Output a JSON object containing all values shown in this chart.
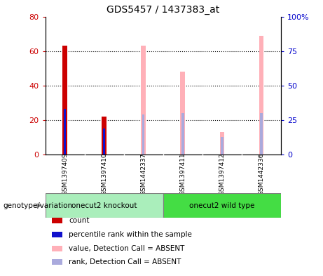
{
  "title": "GDS5457 / 1437383_at",
  "samples": [
    "GSM1397409",
    "GSM1397410",
    "GSM1442337",
    "GSM1397411",
    "GSM1397412",
    "GSM1442336"
  ],
  "group_labels": [
    "onecut2 knockout",
    "onecut2 wild type"
  ],
  "count_values": [
    63,
    22,
    null,
    null,
    null,
    null
  ],
  "rank_values": [
    33,
    19,
    null,
    null,
    null,
    null
  ],
  "value_absent": [
    null,
    null,
    63,
    48,
    13,
    69
  ],
  "rank_absent": [
    null,
    null,
    29,
    30,
    13,
    30
  ],
  "left_ylim": [
    0,
    80
  ],
  "right_ylim": [
    0,
    100
  ],
  "left_yticks": [
    0,
    20,
    40,
    60,
    80
  ],
  "right_yticks": [
    0,
    25,
    50,
    75,
    100
  ],
  "right_yticklabels": [
    "0",
    "25",
    "50",
    "75",
    "100%"
  ],
  "count_color": "#CC0000",
  "rank_color": "#1111CC",
  "value_absent_color": "#FFB0B8",
  "rank_absent_color": "#AAAADD",
  "bg_color": "#D0D0D0",
  "knockout_color": "#AAEEBB",
  "wildtype_color": "#44DD44",
  "ylabel_left_color": "#CC0000",
  "ylabel_right_color": "#0000CC",
  "legend_items": [
    {
      "color": "#CC0000",
      "label": "count"
    },
    {
      "color": "#1111CC",
      "label": "percentile rank within the sample"
    },
    {
      "color": "#FFB0B8",
      "label": "value, Detection Call = ABSENT"
    },
    {
      "color": "#AAAADD",
      "label": "rank, Detection Call = ABSENT"
    }
  ],
  "genotype_label": "genotype/variation"
}
